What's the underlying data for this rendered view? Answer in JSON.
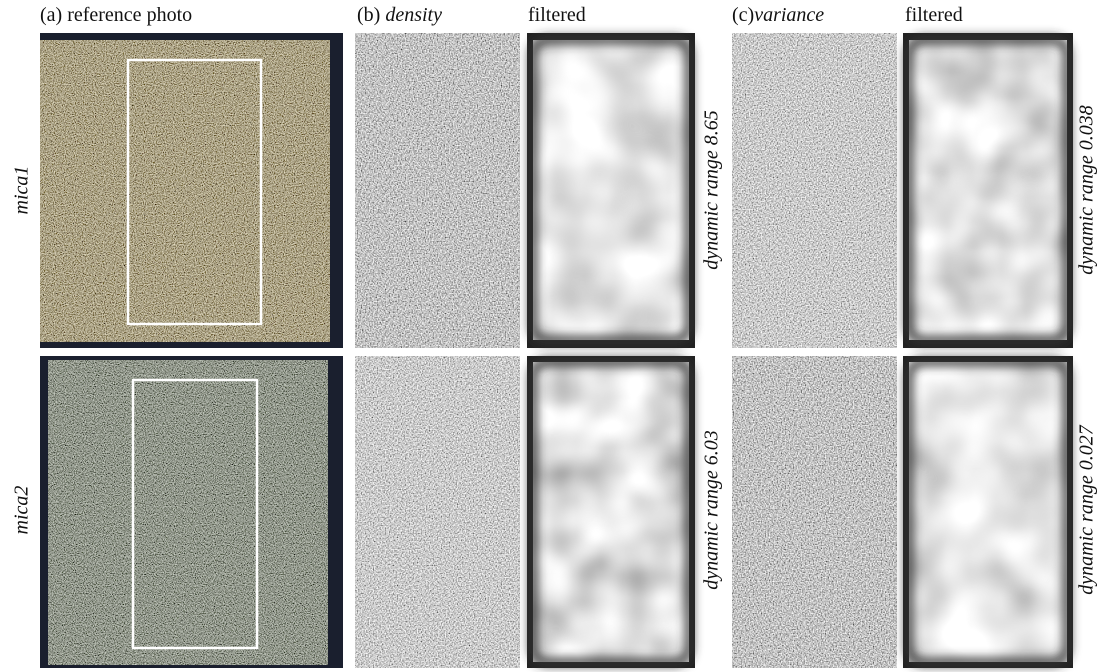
{
  "columns": [
    {
      "label": "(a) reference photo"
    },
    {
      "prefix": "(b) ",
      "name": "density"
    },
    {
      "label": "filtered"
    },
    {
      "prefix": "(c)",
      "name": "variance"
    },
    {
      "label": "filtered"
    }
  ],
  "rows": [
    {
      "label": "mica1",
      "density_range": "dynamic range 8.65",
      "variance_range": "dynamic range 0.038"
    },
    {
      "label": "mica2",
      "density_range": "dynamic range 6.03",
      "variance_range": "dynamic range 0.027"
    }
  ]
}
